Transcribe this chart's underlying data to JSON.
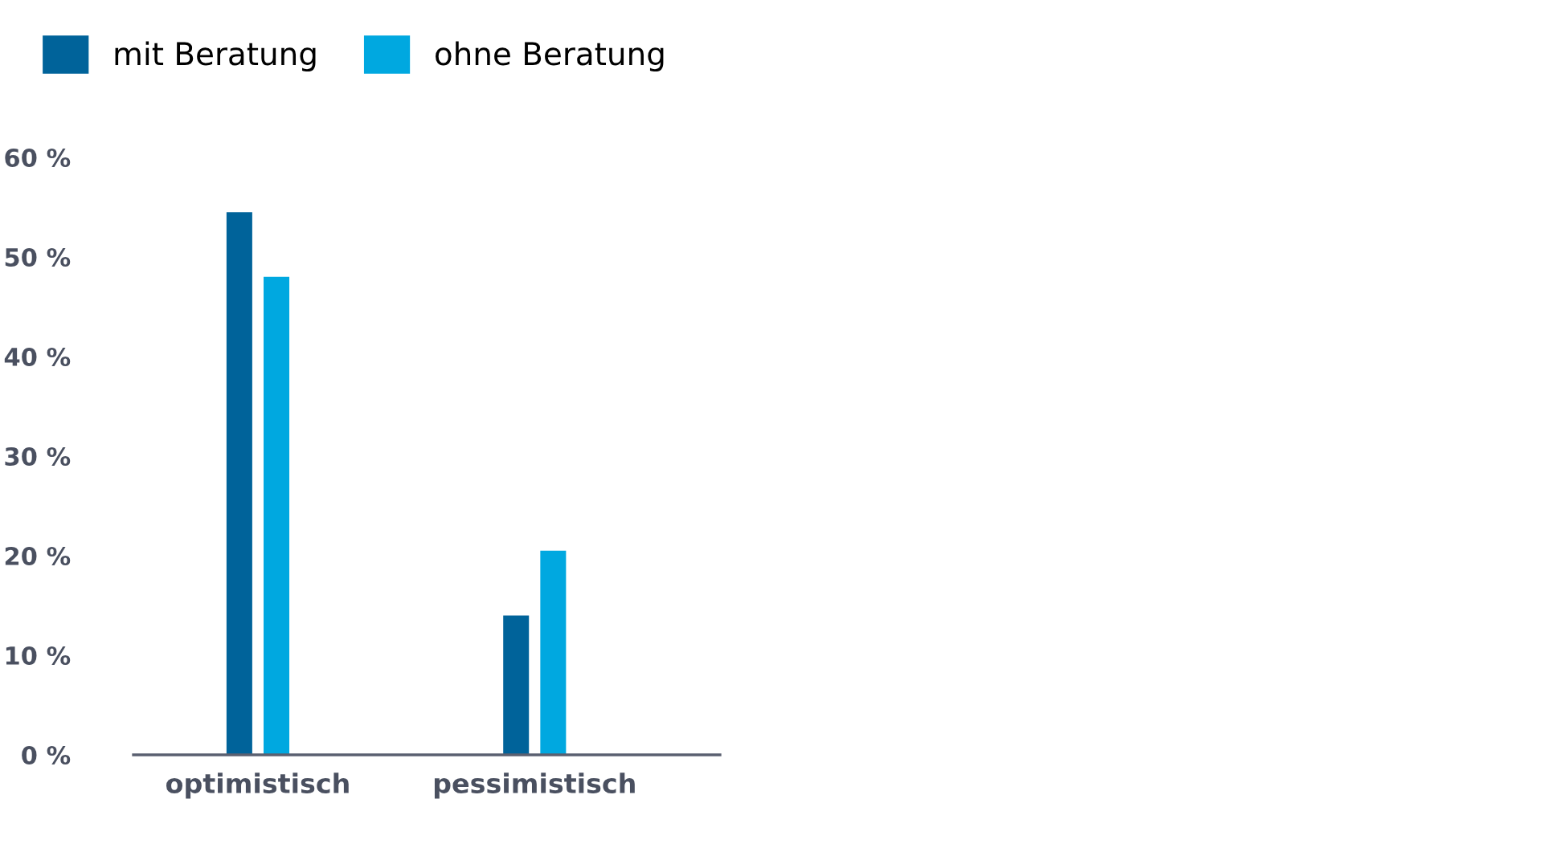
{
  "chart_data": {
    "type": "bar",
    "categories": [
      "optimistisch",
      "pessimistisch"
    ],
    "series": [
      {
        "name": "mit Beratung",
        "color": "#00639a",
        "values": [
          54.5,
          14
        ]
      },
      {
        "name": "ohne Beratung",
        "color": "#00a8e0",
        "values": [
          48,
          20.5
        ]
      }
    ],
    "ylim": [
      0,
      60
    ],
    "yticks": [
      {
        "value": 0,
        "label": "0 %"
      },
      {
        "value": 10,
        "label": "10 %"
      },
      {
        "value": 20,
        "label": "20 %"
      },
      {
        "value": 30,
        "label": "30 %"
      },
      {
        "value": 40,
        "label": "40 %"
      },
      {
        "value": 50,
        "label": "50 %"
      },
      {
        "value": 60,
        "label": "60 %"
      }
    ],
    "grid": false,
    "legend": "top left"
  }
}
